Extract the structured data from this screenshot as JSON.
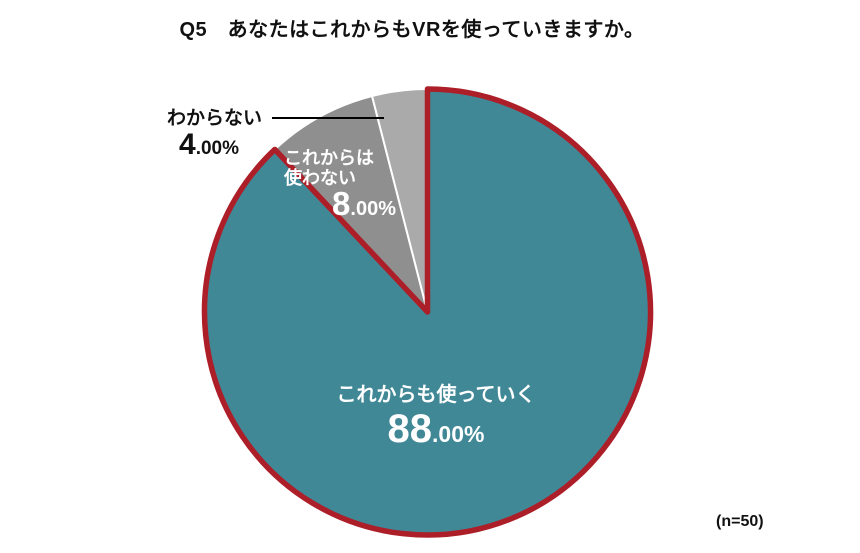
{
  "title": "Q5　あなたはこれからもVRを使っていきますか。",
  "footnote": "(n=50)",
  "colors": {
    "background": "#FFFFFF",
    "title_text": "#111111",
    "highlight_outline": "#AC1F29",
    "divider_stroke": "#FFFFFF",
    "leader_line": "#000000"
  },
  "chart_data": {
    "type": "pie",
    "title": "Q5　あなたはこれからもVRを使っていきますか。",
    "sample_note": "(n=50)",
    "start_angle": "top",
    "direction": "clockwise",
    "legend": "none",
    "slices": [
      {
        "label": "これからも使っていく",
        "value": 88.0,
        "display": {
          "big": "88",
          "small": ".00%"
        },
        "color": "#418897",
        "stroke": "#AC1F29",
        "stroke_width": 5.5,
        "text_color": "#FFFFFF",
        "label_position": "inside"
      },
      {
        "label": "これからは使わない",
        "label_lines": [
          "これからは",
          "使わない"
        ],
        "value": 8.0,
        "display": {
          "big": "8",
          "small": ".00%"
        },
        "color": "#8F8F8F",
        "stroke": "#FFFFFF",
        "stroke_width": 2,
        "text_color": "#FFFFFF",
        "label_position": "inside"
      },
      {
        "label": "わからない",
        "value": 4.0,
        "display": {
          "big": "4",
          "small": ".00%"
        },
        "color": "#AAAAAA",
        "stroke": "#FFFFFF",
        "stroke_width": 2,
        "text_color": "#111111",
        "label_position": "outside-left",
        "leader_line": true
      }
    ]
  }
}
